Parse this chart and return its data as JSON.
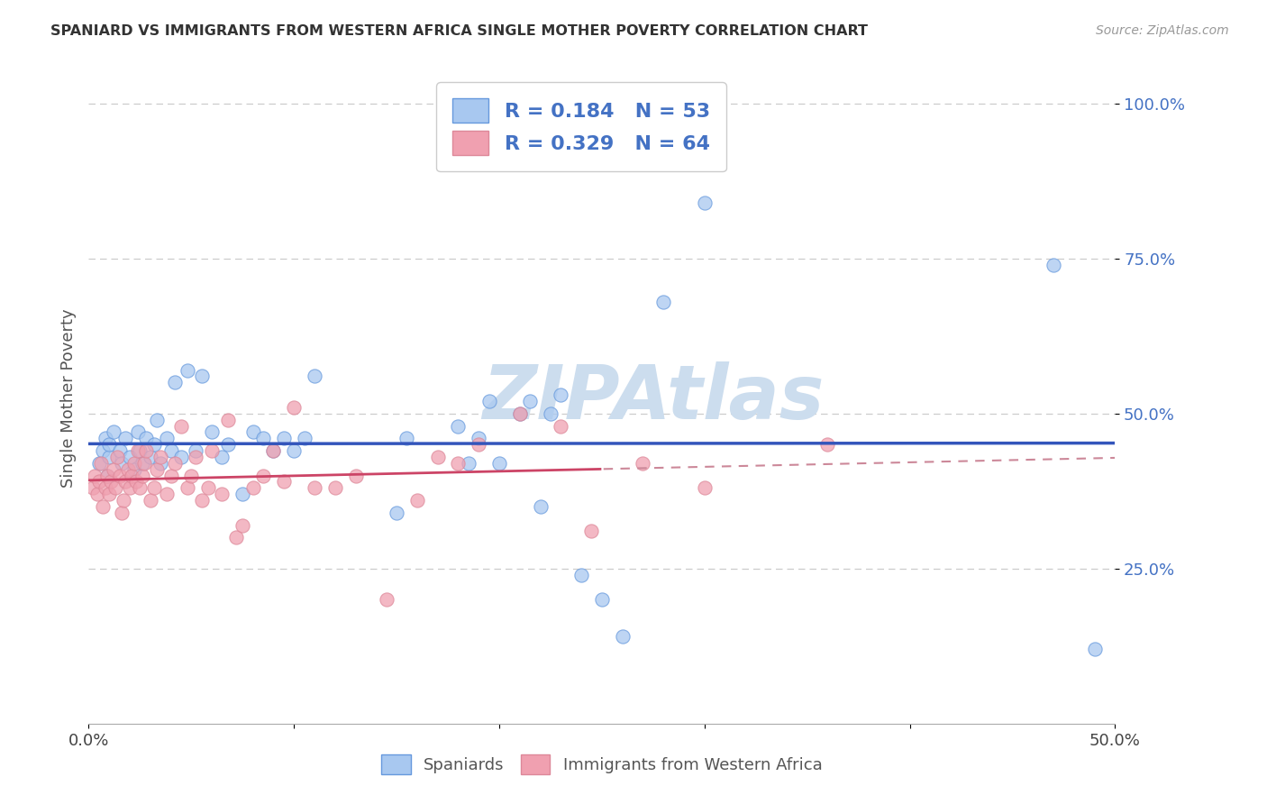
{
  "title": "SPANIARD VS IMMIGRANTS FROM WESTERN AFRICA SINGLE MOTHER POVERTY CORRELATION CHART",
  "source": "Source: ZipAtlas.com",
  "ylabel": "Single Mother Poverty",
  "xlim": [
    0.0,
    0.5
  ],
  "ylim": [
    0.0,
    1.05
  ],
  "ytick_vals": [
    0.25,
    0.5,
    0.75,
    1.0
  ],
  "ytick_labels": [
    "25.0%",
    "50.0%",
    "75.0%",
    "100.0%"
  ],
  "xtick_vals": [
    0.0,
    0.1,
    0.2,
    0.3,
    0.4,
    0.5
  ],
  "xtick_labels": [
    "0.0%",
    "",
    "",
    "",
    "",
    "50.0%"
  ],
  "blue_color": "#A8C8F0",
  "pink_color": "#F0A0B0",
  "blue_edge_color": "#6699DD",
  "pink_edge_color": "#DD8899",
  "blue_line_color": "#3355BB",
  "pink_line_color": "#CC4466",
  "pink_dash_color": "#CC8899",
  "text_color_blue": "#4472C4",
  "watermark": "ZIPAtlas",
  "watermark_color": "#CCDDEE",
  "grid_color": "#CCCCCC",
  "title_color": "#333333",
  "source_color": "#999999",
  "spaniards_x": [
    0.005,
    0.007,
    0.008,
    0.009,
    0.01,
    0.01,
    0.012,
    0.015,
    0.016,
    0.018,
    0.02,
    0.022,
    0.024,
    0.025,
    0.026,
    0.028,
    0.03,
    0.032,
    0.033,
    0.035,
    0.038,
    0.04,
    0.042,
    0.045,
    0.048,
    0.052,
    0.055,
    0.06,
    0.065,
    0.068,
    0.075,
    0.08,
    0.085,
    0.09,
    0.095,
    0.1,
    0.105,
    0.11,
    0.15,
    0.155,
    0.18,
    0.185,
    0.19,
    0.195,
    0.2,
    0.21,
    0.215,
    0.22,
    0.225,
    0.23,
    0.24,
    0.25,
    0.26,
    0.28,
    0.3,
    0.47,
    0.49
  ],
  "spaniards_y": [
    0.42,
    0.44,
    0.46,
    0.4,
    0.43,
    0.45,
    0.47,
    0.44,
    0.42,
    0.46,
    0.43,
    0.41,
    0.47,
    0.44,
    0.42,
    0.46,
    0.43,
    0.45,
    0.49,
    0.42,
    0.46,
    0.44,
    0.55,
    0.43,
    0.57,
    0.44,
    0.56,
    0.47,
    0.43,
    0.45,
    0.37,
    0.47,
    0.46,
    0.44,
    0.46,
    0.44,
    0.46,
    0.56,
    0.34,
    0.46,
    0.48,
    0.42,
    0.46,
    0.52,
    0.42,
    0.5,
    0.52,
    0.35,
    0.5,
    0.53,
    0.24,
    0.2,
    0.14,
    0.68,
    0.84,
    0.74,
    0.12
  ],
  "immigrants_x": [
    0.002,
    0.003,
    0.004,
    0.005,
    0.006,
    0.007,
    0.008,
    0.009,
    0.01,
    0.011,
    0.012,
    0.013,
    0.014,
    0.015,
    0.016,
    0.017,
    0.018,
    0.019,
    0.02,
    0.021,
    0.022,
    0.023,
    0.024,
    0.025,
    0.026,
    0.027,
    0.028,
    0.03,
    0.032,
    0.033,
    0.035,
    0.038,
    0.04,
    0.042,
    0.045,
    0.048,
    0.05,
    0.052,
    0.055,
    0.058,
    0.06,
    0.065,
    0.068,
    0.072,
    0.075,
    0.08,
    0.085,
    0.09,
    0.095,
    0.1,
    0.11,
    0.12,
    0.13,
    0.145,
    0.16,
    0.17,
    0.18,
    0.19,
    0.21,
    0.23,
    0.245,
    0.27,
    0.3,
    0.36
  ],
  "immigrants_y": [
    0.38,
    0.4,
    0.37,
    0.39,
    0.42,
    0.35,
    0.38,
    0.4,
    0.37,
    0.39,
    0.41,
    0.38,
    0.43,
    0.4,
    0.34,
    0.36,
    0.39,
    0.41,
    0.38,
    0.4,
    0.42,
    0.39,
    0.44,
    0.38,
    0.4,
    0.42,
    0.44,
    0.36,
    0.38,
    0.41,
    0.43,
    0.37,
    0.4,
    0.42,
    0.48,
    0.38,
    0.4,
    0.43,
    0.36,
    0.38,
    0.44,
    0.37,
    0.49,
    0.3,
    0.32,
    0.38,
    0.4,
    0.44,
    0.39,
    0.51,
    0.38,
    0.38,
    0.4,
    0.2,
    0.36,
    0.43,
    0.42,
    0.45,
    0.5,
    0.48,
    0.31,
    0.42,
    0.38,
    0.45
  ]
}
